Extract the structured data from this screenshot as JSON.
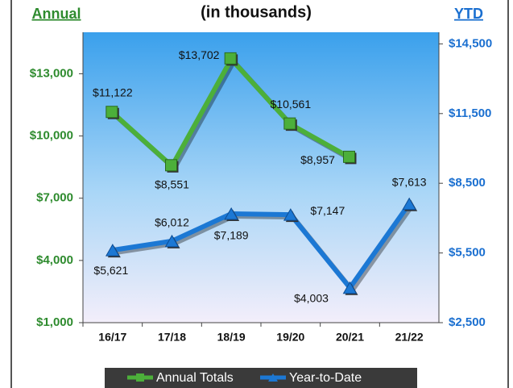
{
  "chart_data": {
    "type": "line",
    "title": "(in thousands)",
    "ylabel": "Annual",
    "y2label": "YTD",
    "categories": [
      "16/17",
      "17/18",
      "18/19",
      "19/20",
      "20/21",
      "21/22"
    ],
    "series": [
      {
        "name": "Annual Totals",
        "color": "#4caf3a",
        "values": [
          11122,
          8551,
          13702,
          10561,
          8957,
          null
        ],
        "value_labels": [
          "$11,122",
          "$8,551",
          "$13,702",
          "$10,561",
          "$8,957",
          null
        ]
      },
      {
        "name": "Year-to-Date",
        "color": "#1c78d4",
        "axis": "y2",
        "values": [
          5621,
          6012,
          7189,
          7147,
          4003,
          7613
        ],
        "value_labels": [
          "$5,621",
          "$6,012",
          "$7,189",
          "$7,147",
          "$4,003",
          "$7,613"
        ]
      }
    ],
    "ylim": [
      1000,
      15000
    ],
    "yticks": [
      {
        "value": 1000,
        "label": "$1,000"
      },
      {
        "value": 4000,
        "label": "$4,000"
      },
      {
        "value": 7000,
        "label": "$7,000"
      },
      {
        "value": 10000,
        "label": "$10,000"
      },
      {
        "value": 13000,
        "label": "$13,000"
      }
    ],
    "y2lim": [
      2500,
      15000
    ],
    "y2ticks": [
      {
        "value": 2500,
        "label": "$2,500"
      },
      {
        "value": 5500,
        "label": "$5,500"
      },
      {
        "value": 8500,
        "label": "$8,500"
      },
      {
        "value": 11500,
        "label": "$11,500"
      },
      {
        "value": 14500,
        "label": "$14,500"
      }
    ],
    "legend": "bottom"
  }
}
